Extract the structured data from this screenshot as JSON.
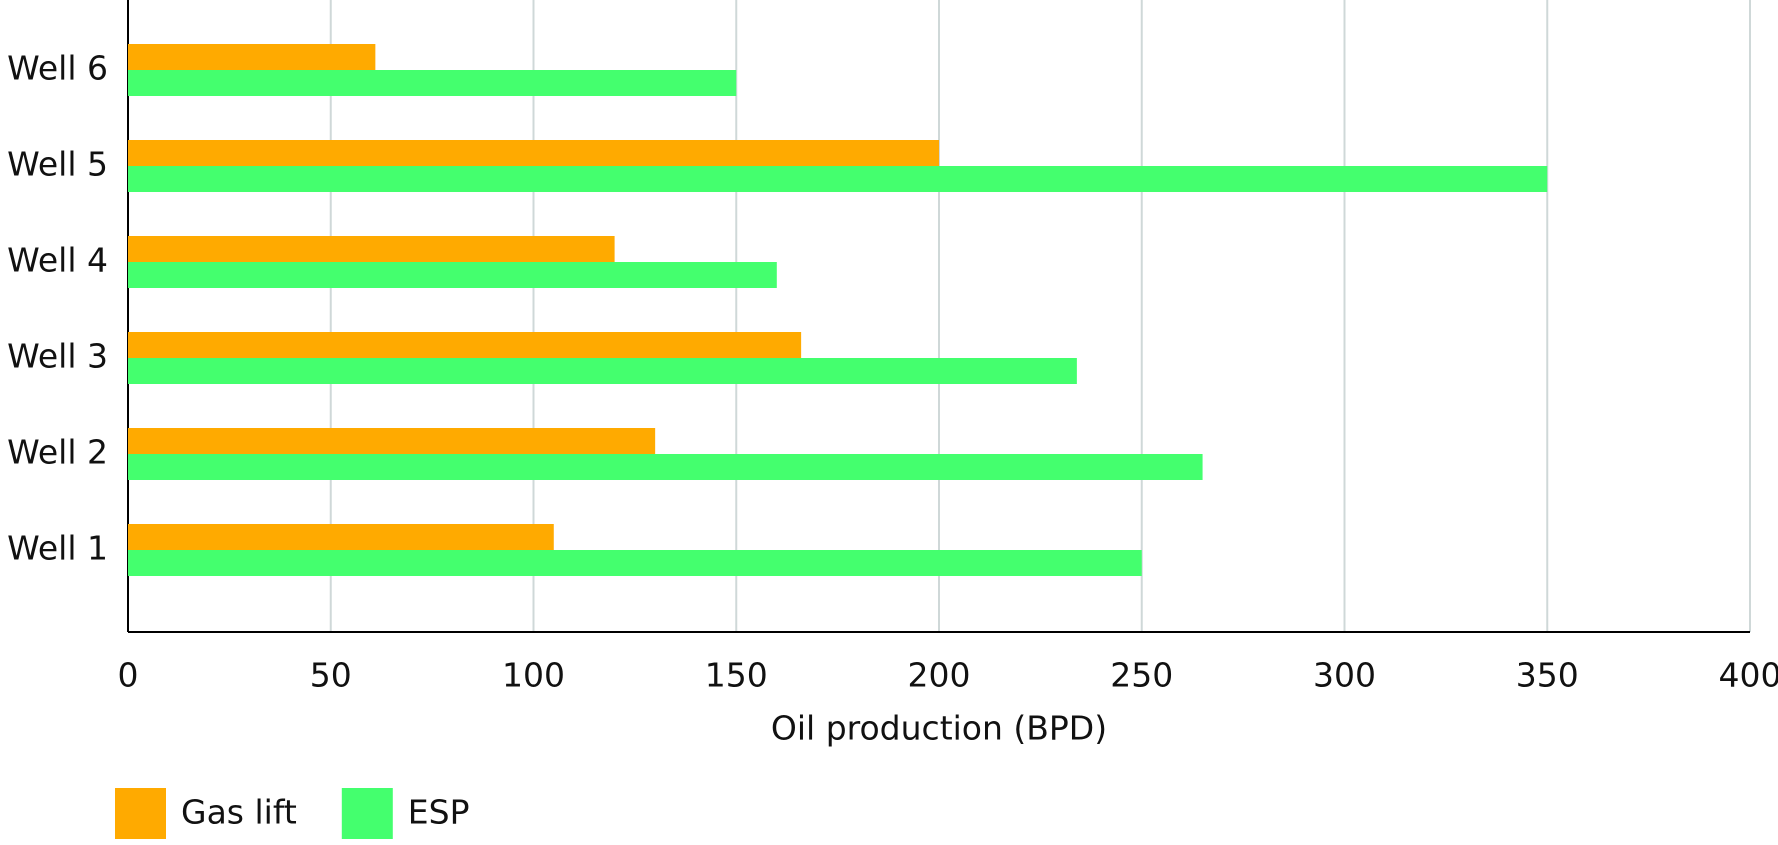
{
  "chart_data": {
    "type": "barh",
    "x_label": "Oil production (BPD)",
    "categories": [
      "Well 1",
      "Well 2",
      "Well 3",
      "Well 4",
      "Well 5",
      "Well 6"
    ],
    "series": [
      {
        "name": "Gas lift",
        "color": "#FFAA00",
        "values": [
          105,
          130,
          166,
          120,
          200,
          61
        ]
      },
      {
        "name": "ESP",
        "color": "#44FF6E",
        "values": [
          250,
          265,
          234,
          160,
          350,
          150
        ]
      }
    ],
    "xlim": [
      0,
      400
    ],
    "xticks": [
      0,
      50,
      100,
      150,
      200,
      250,
      300,
      350,
      400
    ],
    "grid": true,
    "legend": "bottom-left"
  }
}
